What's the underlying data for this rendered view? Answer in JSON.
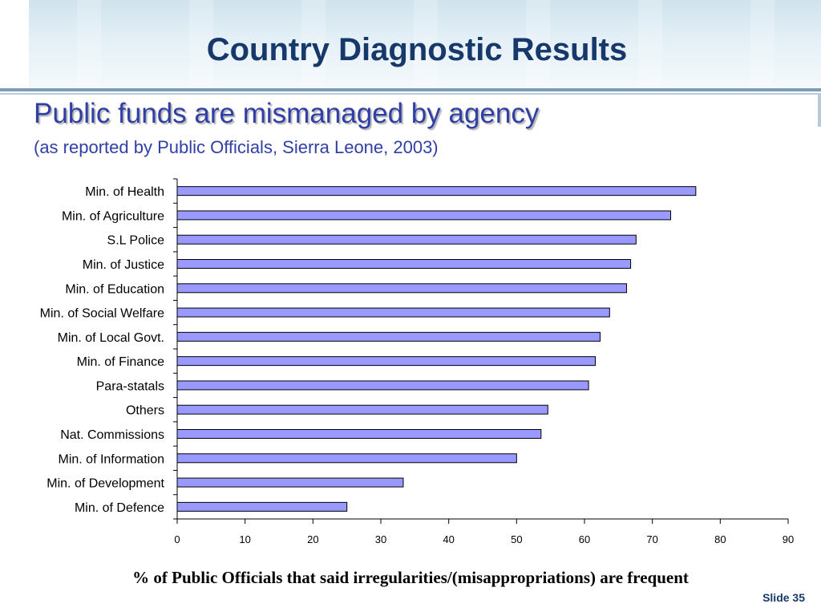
{
  "slide": {
    "title": "Country Diagnostic Results",
    "subtitle": "Public funds are mismanaged by agency",
    "subtitle_note": "(as reported by Public Officials, Sierra Leone, 2003)",
    "slide_number": "Slide 35"
  },
  "colors": {
    "title": "#16386a",
    "subtitle": "#2f3fa6",
    "bar_fill": "#9999ff",
    "bar_stroke": "#000000"
  },
  "chart_data": {
    "type": "bar",
    "orientation": "horizontal",
    "title": "",
    "xlabel": "% of Public Officials that said irregularities/(misappropriations) are frequent",
    "ylabel": "",
    "xlim": [
      0,
      90
    ],
    "xticks": [
      0,
      10,
      20,
      30,
      40,
      50,
      60,
      70,
      80,
      90
    ],
    "grid": false,
    "categories": [
      "Min. of Health",
      "Min. of Agriculture",
      "S.L Police",
      "Min. of Justice",
      "Min. of Education",
      "Min. of Social Welfare",
      "Min. of Local Govt.",
      "Min. of Finance",
      "Para-statals",
      "Others",
      "Nat. Commissions",
      "Min. of Information",
      "Min. of Development",
      "Min. of Defence"
    ],
    "values": [
      76.4,
      72.7,
      67.6,
      66.8,
      66.2,
      63.7,
      62.3,
      61.6,
      60.6,
      54.6,
      53.6,
      50.0,
      33.3,
      25.0
    ]
  }
}
